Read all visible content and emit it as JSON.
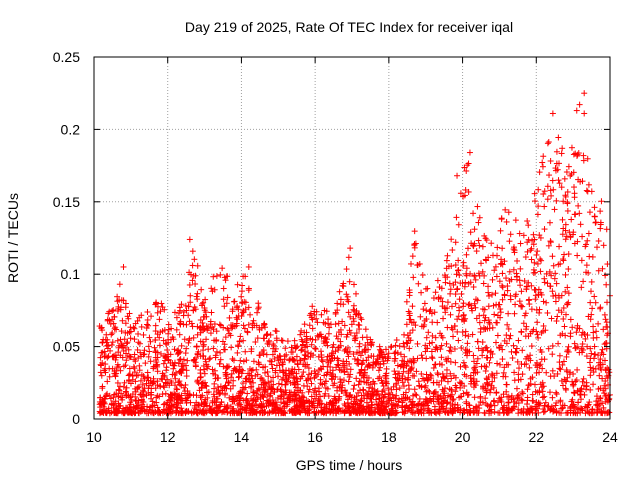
{
  "chart_data": {
    "type": "scatter",
    "title": "Day 219 of 2025, Rate Of TEC Index for receiver iqal",
    "xlabel": "GPS time / hours",
    "ylabel": "ROTI / TECUs",
    "xlim": [
      10,
      24
    ],
    "ylim": [
      0,
      0.25
    ],
    "xticks": [
      10,
      12,
      14,
      16,
      18,
      20,
      22,
      24
    ],
    "yticks": [
      0,
      0.05,
      0.1,
      0.15,
      0.2,
      0.25
    ],
    "ytick_labels": [
      "0",
      "0.05",
      "0.1",
      "0.15",
      "0.2",
      "0.25"
    ],
    "xtick_labels": [
      "10",
      "12",
      "14",
      "16",
      "18",
      "20",
      "22",
      "24"
    ],
    "grid": true,
    "marker": "+",
    "color": "#ff0000",
    "series": [
      {
        "name": "ROTI",
        "envelope": {
          "description": "approximate upper envelope of ROTI (data units) by hour; points fill 0.005..envelope",
          "x": [
            10.0,
            10.5,
            10.8,
            11.0,
            11.5,
            11.8,
            12.0,
            12.5,
            12.6,
            13.0,
            13.4,
            13.8,
            14.2,
            14.6,
            15.0,
            15.5,
            16.0,
            16.5,
            16.9,
            17.2,
            17.6,
            18.0,
            18.4,
            18.7,
            19.0,
            19.5,
            19.9,
            20.1,
            20.4,
            20.8,
            21.2,
            21.6,
            22.0,
            22.4,
            22.8,
            23.2,
            23.5,
            23.8,
            24.0
          ],
          "y": [
            0.07,
            0.075,
            0.105,
            0.07,
            0.075,
            0.085,
            0.07,
            0.085,
            0.125,
            0.09,
            0.11,
            0.09,
            0.105,
            0.07,
            0.06,
            0.055,
            0.085,
            0.07,
            0.118,
            0.075,
            0.05,
            0.05,
            0.06,
            0.135,
            0.09,
            0.1,
            0.17,
            0.185,
            0.15,
            0.12,
            0.15,
            0.13,
            0.16,
            0.21,
            0.18,
            0.225,
            0.17,
            0.15,
            0.12
          ]
        },
        "notable_points": [
          {
            "x": 23.3,
            "y": 0.225
          },
          {
            "x": 22.45,
            "y": 0.211
          },
          {
            "x": 23.3,
            "y": 0.211
          },
          {
            "x": 20.2,
            "y": 0.184
          },
          {
            "x": 19.85,
            "y": 0.168
          },
          {
            "x": 12.6,
            "y": 0.124
          },
          {
            "x": 16.95,
            "y": 0.118
          },
          {
            "x": 10.8,
            "y": 0.105
          },
          {
            "x": 14.2,
            "y": 0.105
          }
        ]
      }
    ]
  }
}
